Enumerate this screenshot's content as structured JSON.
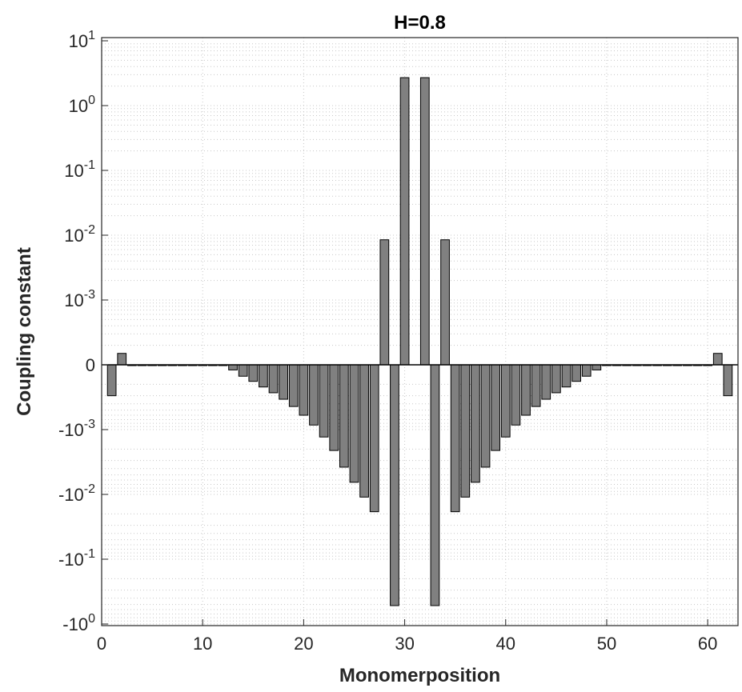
{
  "chart_data": {
    "type": "bar",
    "title": "H=0.8",
    "xlabel": "Monomerposition",
    "ylabel": "Coupling constant",
    "yscale": "symlog",
    "grid": true,
    "xlim": [
      0,
      63
    ],
    "xticks": [
      0,
      10,
      20,
      30,
      40,
      50,
      60
    ],
    "ytick_labels": [
      {
        "base": "10",
        "exp": "1"
      },
      {
        "base": "10",
        "exp": "0"
      },
      {
        "base": "10",
        "exp": "-1"
      },
      {
        "base": "10",
        "exp": "-2"
      },
      {
        "base": "10",
        "exp": "-3"
      },
      {
        "base": "0",
        "exp": ""
      },
      {
        "base": "-10",
        "exp": "-3"
      },
      {
        "base": "-10",
        "exp": "-2"
      },
      {
        "base": "-10",
        "exp": "-1"
      },
      {
        "base": "-10",
        "exp": "0"
      }
    ],
    "x": [
      1,
      2,
      3,
      4,
      5,
      6,
      7,
      8,
      9,
      10,
      11,
      12,
      13,
      14,
      15,
      16,
      17,
      18,
      19,
      20,
      21,
      22,
      23,
      24,
      25,
      26,
      27,
      28,
      29,
      30,
      31,
      32,
      33,
      34,
      35,
      36,
      37,
      38,
      39,
      40,
      41,
      42,
      43,
      44,
      45,
      46,
      47,
      48,
      49,
      50,
      51,
      52,
      53,
      54,
      55,
      56,
      57,
      58,
      59,
      60,
      61,
      62
    ],
    "values": [
      -0.0003,
      0.00015,
      5e-06,
      -1e-05,
      -2e-05,
      -3e-05,
      -4e-05,
      -5e-05,
      -6e-05,
      -7e-05,
      -8e-05,
      -0.0001,
      -0.00012,
      -0.00015,
      -0.00018,
      -0.00022,
      -0.00027,
      -0.00034,
      -0.00044,
      -0.0006,
      -0.00085,
      -0.0013,
      -0.0021,
      -0.0038,
      -0.0065,
      -0.011,
      -0.0185,
      0.0085,
      -0.52,
      2.7,
      0,
      2.7,
      -0.52,
      0.0085,
      -0.0185,
      -0.011,
      -0.0065,
      -0.0038,
      -0.0021,
      -0.0013,
      -0.00085,
      -0.0006,
      -0.00044,
      -0.00034,
      -0.00027,
      -0.00022,
      -0.00018,
      -0.00015,
      -0.00012,
      -0.0001,
      -8e-05,
      -7e-05,
      -6e-05,
      -5e-05,
      -4e-05,
      -3e-05,
      -2e-05,
      -1e-05,
      -7e-06,
      -5e-06,
      0.00015,
      -0.0003
    ],
    "colors": {
      "bar_fill": "#808080",
      "bar_stroke": "#000000",
      "grid": "#c8c8c8",
      "axis": "#262626"
    }
  }
}
